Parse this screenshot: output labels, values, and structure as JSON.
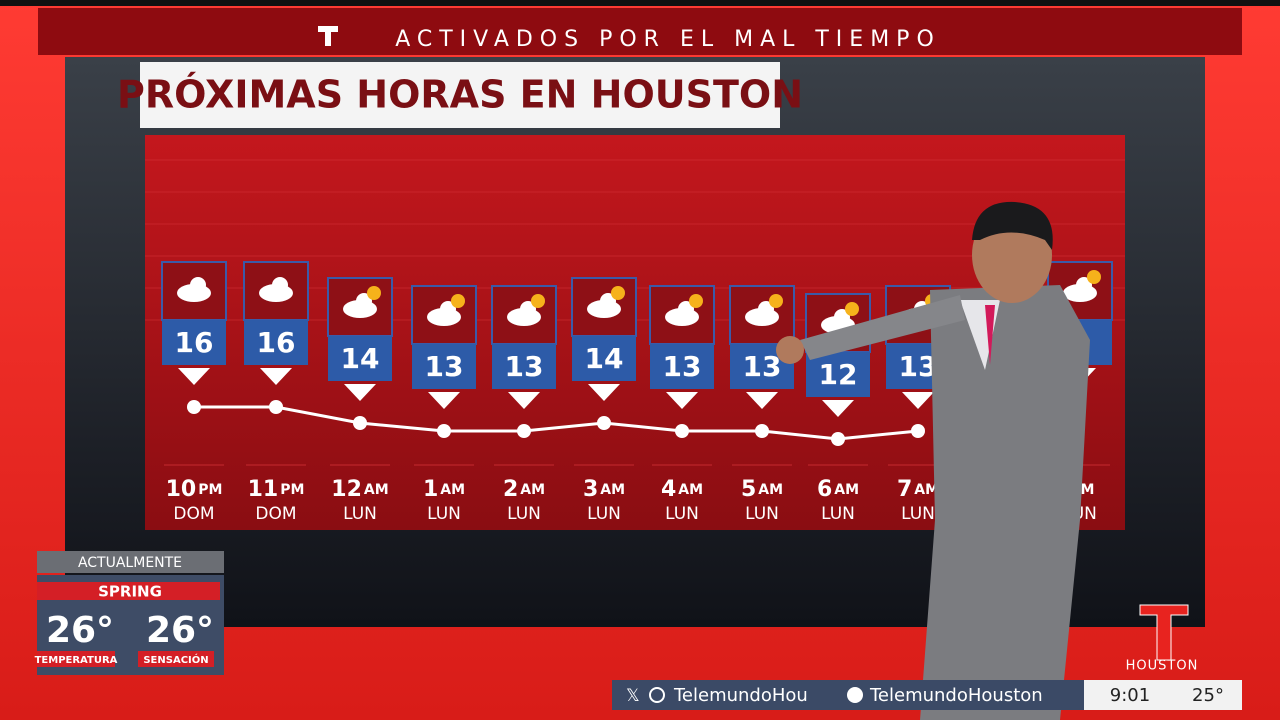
{
  "banner": {
    "title": "ACTIVADOS POR EL MAL TIEMPO"
  },
  "chart_data": {
    "type": "line",
    "title": "PRÓXIMAS HORAS EN HOUSTON",
    "categories": [
      "10",
      "11",
      "12",
      "1",
      "2",
      "3",
      "4",
      "5",
      "6",
      "7",
      null
    ],
    "periods": [
      "PM",
      "PM",
      "AM",
      "AM",
      "AM",
      "AM",
      "AM",
      "AM",
      "AM",
      "AM",
      "AM"
    ],
    "days": [
      "DOM",
      "DOM",
      "LUN",
      "LUN",
      "LUN",
      "LUN",
      "LUN",
      "LUN",
      "LUN",
      "LUN",
      "LUN"
    ],
    "values": [
      16,
      16,
      14,
      13,
      13,
      14,
      13,
      13,
      12,
      13,
      null
    ],
    "color": "#ffffff"
  },
  "current": {
    "label": "ACTUALMENTE",
    "location": "SPRING",
    "temperature": "26°",
    "temperature_label": "TEMPERATURA",
    "feels_like": "26°",
    "feels_like_label": "SENSACIÓN"
  },
  "footer": {
    "x_handle": "TelemundoHou",
    "facebook_handle": "TelemundoHouston",
    "time": "9:01",
    "temperature": "25°",
    "station": "HOUSTON"
  }
}
